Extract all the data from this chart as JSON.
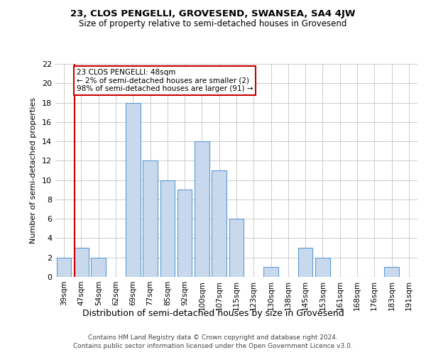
{
  "title1": "23, CLOS PENGELLI, GROVESEND, SWANSEA, SA4 4JW",
  "title2": "Size of property relative to semi-detached houses in Grovesend",
  "xlabel": "Distribution of semi-detached houses by size in Grovesend",
  "ylabel": "Number of semi-detached properties",
  "footnote1": "Contains HM Land Registry data © Crown copyright and database right 2024.",
  "footnote2": "Contains public sector information licensed under the Open Government Licence v3.0.",
  "bin_labels": [
    "39sqm",
    "47sqm",
    "54sqm",
    "62sqm",
    "69sqm",
    "77sqm",
    "85sqm",
    "92sqm",
    "100sqm",
    "107sqm",
    "115sqm",
    "123sqm",
    "130sqm",
    "138sqm",
    "145sqm",
    "153sqm",
    "161sqm",
    "168sqm",
    "176sqm",
    "183sqm",
    "191sqm"
  ],
  "bar_values": [
    2,
    3,
    2,
    0,
    18,
    12,
    10,
    9,
    14,
    11,
    6,
    0,
    1,
    0,
    3,
    2,
    0,
    0,
    0,
    1,
    0
  ],
  "bar_color": "#c9d9ed",
  "bar_edge_color": "#5b9bd5",
  "subject_line_bin_index": 1,
  "ylim": [
    0,
    22
  ],
  "yticks": [
    0,
    2,
    4,
    6,
    8,
    10,
    12,
    14,
    16,
    18,
    20,
    22
  ],
  "annotation_line1": "23 CLOS PENGELLI: 48sqm",
  "annotation_line2": "← 2% of semi-detached houses are smaller (2)",
  "annotation_line3": "98% of semi-detached houses are larger (91) →",
  "annotation_box_color": "#ffffff",
  "annotation_box_edge_color": "#cc0000",
  "subject_vline_color": "#cc0000",
  "grid_color": "#cccccc",
  "bg_color": "#ffffff"
}
